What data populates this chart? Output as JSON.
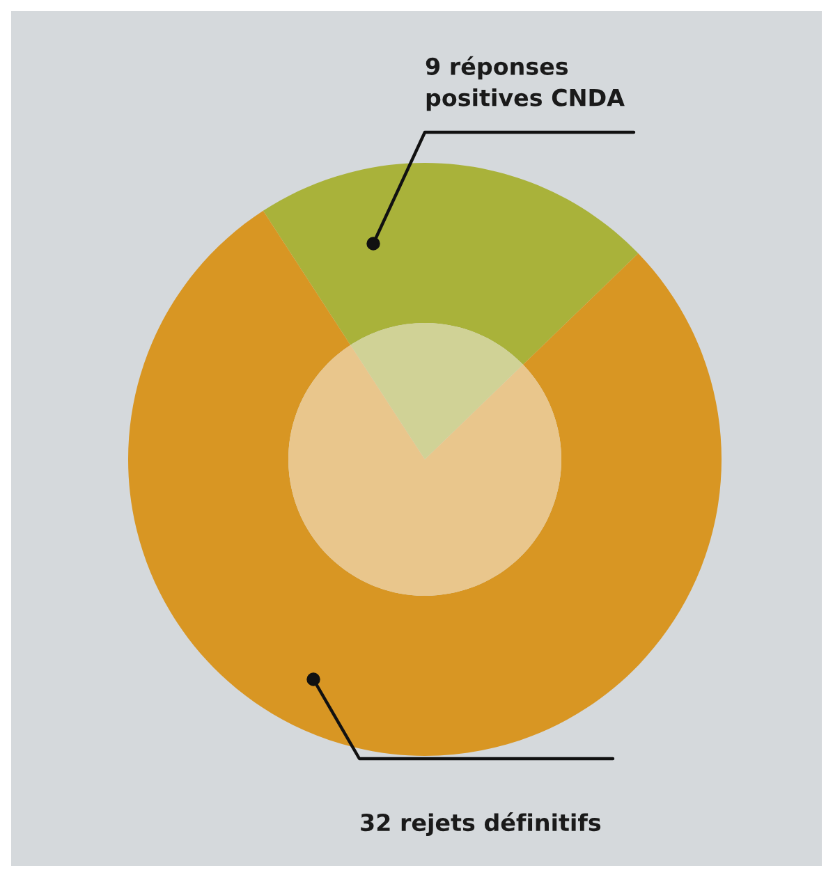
{
  "chart_data": {
    "type": "donut",
    "categories": [
      "9 réponses\npositives CNDA",
      "32 rejets définitifs"
    ],
    "series": [
      {
        "values": [
          9,
          32
        ],
        "colors": [
          "#a9b23a",
          "#d89623"
        ]
      },
      {
        "values": [
          9,
          32
        ],
        "colors": [
          "#d0d296",
          "#e9c68c"
        ]
      }
    ]
  }
}
